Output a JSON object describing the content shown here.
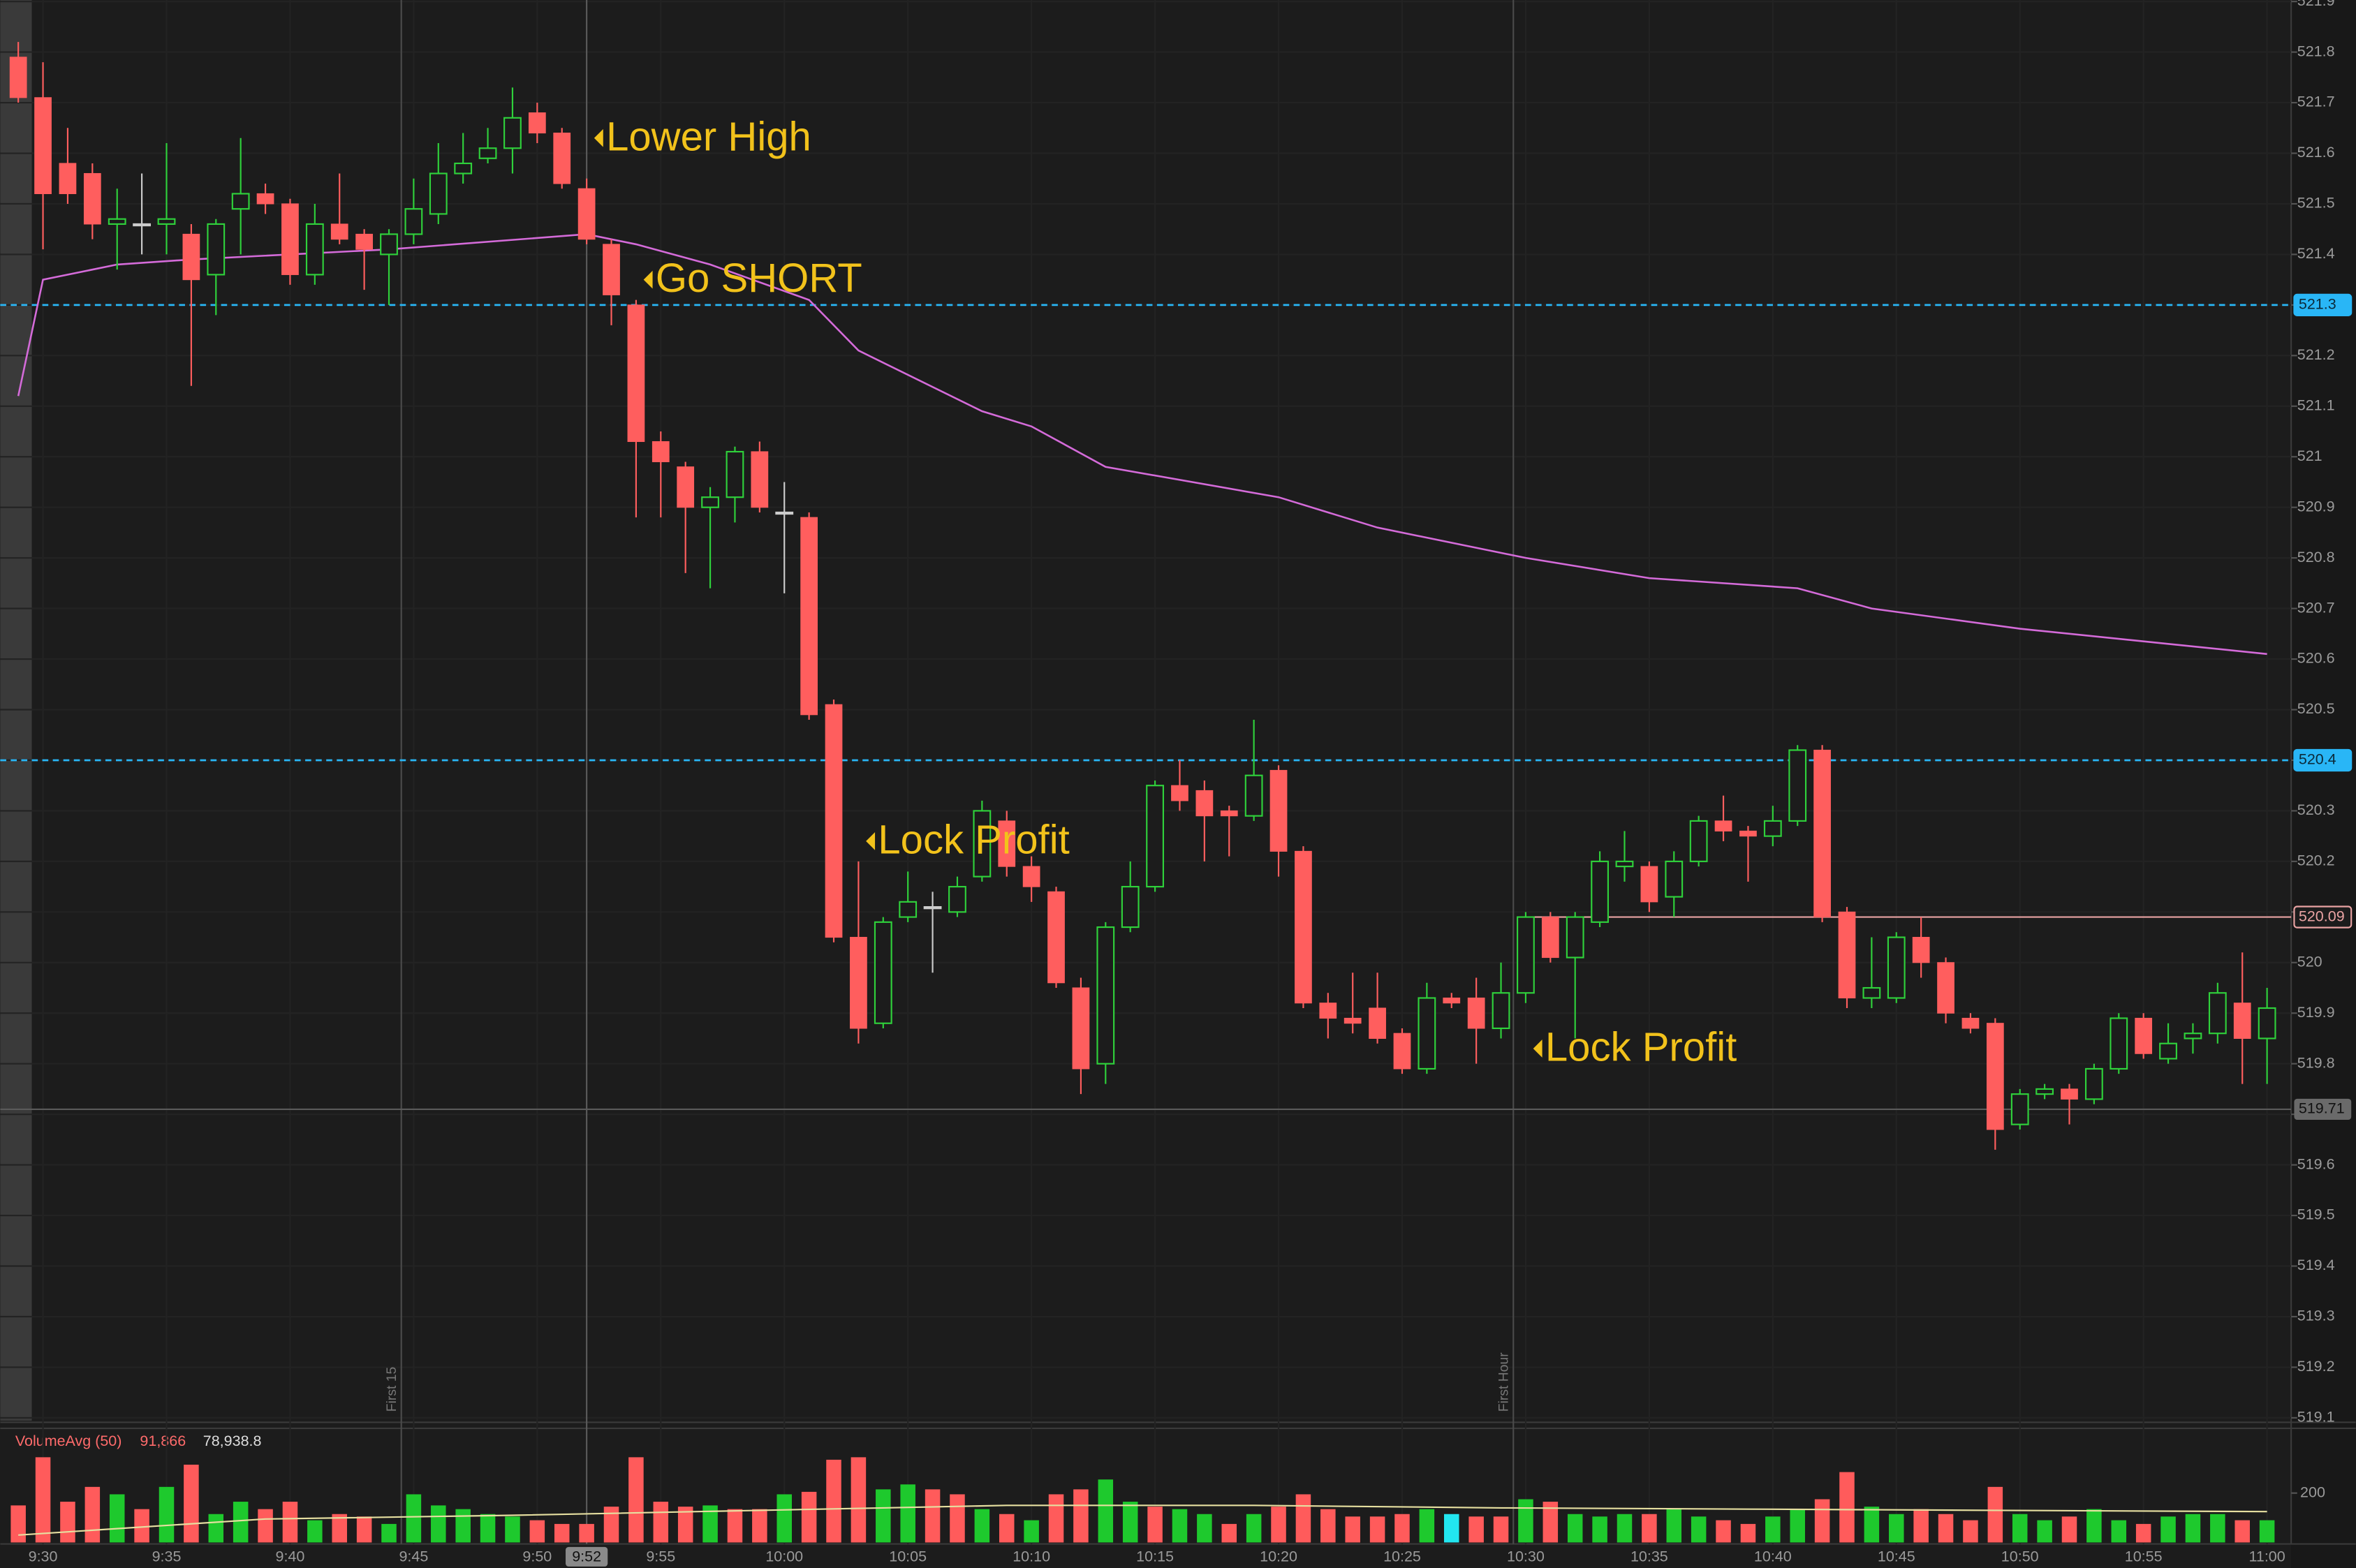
{
  "chart_data": {
    "type": "candlestick",
    "categories": [
      null,
      "9:30",
      null,
      null,
      null,
      null,
      "9:35",
      null,
      null,
      null,
      null,
      "9:40",
      null,
      null,
      null,
      null,
      "9:45",
      null,
      null,
      null,
      null,
      "9:50",
      null,
      null,
      null,
      null,
      "9:55",
      null,
      null,
      null,
      null,
      "10:00",
      null,
      null,
      null,
      null,
      "10:05",
      null,
      null,
      null,
      null,
      "10:10",
      null,
      null,
      null,
      null,
      "10:15",
      null,
      null,
      null,
      null,
      "10:20",
      null,
      null,
      null,
      null,
      "10:25",
      null,
      null,
      null,
      null,
      "10:30",
      null,
      null,
      null,
      null,
      "10:35",
      null,
      null,
      null,
      null,
      "10:40",
      null,
      null,
      null,
      null,
      "10:45",
      null,
      null,
      null,
      null,
      "10:50",
      null,
      null,
      null,
      null,
      "10:55",
      null,
      null,
      null,
      null,
      "11:00"
    ],
    "open": [
      521.79,
      521.71,
      521.58,
      521.56,
      521.46,
      521.46,
      521.46,
      521.44,
      521.36,
      521.49,
      521.52,
      521.5,
      521.36,
      521.46,
      521.44,
      521.4,
      521.44,
      521.48,
      521.56,
      521.59,
      521.61,
      521.68,
      521.64,
      521.53,
      521.42,
      521.3,
      521.03,
      520.98,
      520.9,
      520.92,
      521.01,
      520.89,
      520.88,
      520.51,
      520.05,
      519.88,
      520.09,
      520.11,
      520.1,
      520.17,
      520.28,
      520.19,
      520.14,
      519.95,
      519.8,
      520.07,
      520.15,
      520.35,
      520.34,
      520.3,
      520.29,
      520.38,
      520.22,
      519.92,
      519.89,
      519.91,
      519.86,
      519.79,
      519.93,
      519.93,
      519.87,
      519.94,
      520.09,
      520.01,
      520.08,
      520.19,
      520.19,
      520.13,
      520.2,
      520.28,
      520.26,
      520.25,
      520.28,
      520.42,
      520.1,
      519.93,
      519.93,
      520.05,
      520.0,
      519.89,
      519.88,
      519.68,
      519.74,
      519.75,
      519.73,
      519.79,
      519.89,
      519.81,
      519.85,
      519.86,
      519.92,
      519.85
    ],
    "high": [
      521.82,
      521.78,
      521.65,
      521.58,
      521.53,
      521.56,
      521.62,
      521.46,
      521.47,
      521.63,
      521.54,
      521.51,
      521.5,
      521.56,
      521.45,
      521.45,
      521.55,
      521.62,
      521.64,
      521.65,
      521.73,
      521.7,
      521.65,
      521.55,
      521.43,
      521.31,
      521.05,
      520.99,
      520.94,
      521.02,
      521.03,
      520.95,
      520.89,
      520.52,
      520.2,
      520.09,
      520.18,
      520.14,
      520.17,
      520.32,
      520.3,
      520.21,
      520.15,
      519.97,
      520.08,
      520.2,
      520.36,
      520.4,
      520.36,
      520.31,
      520.48,
      520.39,
      520.23,
      519.94,
      519.98,
      519.98,
      519.87,
      519.96,
      519.94,
      519.97,
      520.0,
      520.1,
      520.1,
      520.1,
      520.22,
      520.26,
      520.2,
      520.22,
      520.29,
      520.33,
      520.27,
      520.31,
      520.43,
      520.43,
      520.11,
      520.05,
      520.06,
      520.09,
      520.01,
      519.9,
      519.89,
      519.75,
      519.76,
      519.76,
      519.8,
      519.9,
      519.9,
      519.88,
      519.88,
      519.96,
      520.02,
      519.95
    ],
    "low": [
      521.7,
      521.41,
      521.5,
      521.43,
      521.37,
      521.4,
      521.4,
      521.14,
      521.28,
      521.4,
      521.48,
      521.34,
      521.34,
      521.42,
      521.33,
      521.3,
      521.42,
      521.46,
      521.54,
      521.58,
      521.56,
      521.62,
      521.53,
      521.42,
      521.26,
      520.88,
      520.88,
      520.77,
      520.74,
      520.87,
      520.89,
      520.73,
      520.48,
      520.04,
      519.84,
      519.87,
      520.08,
      519.98,
      520.09,
      520.16,
      520.17,
      520.12,
      519.95,
      519.74,
      519.76,
      520.06,
      520.14,
      520.3,
      520.2,
      520.21,
      520.28,
      520.17,
      519.91,
      519.85,
      519.86,
      519.84,
      519.78,
      519.78,
      519.91,
      519.8,
      519.85,
      519.92,
      520.0,
      519.85,
      520.07,
      520.16,
      520.1,
      520.09,
      520.19,
      520.24,
      520.16,
      520.23,
      520.27,
      520.08,
      519.91,
      519.91,
      519.92,
      519.97,
      519.88,
      519.86,
      519.63,
      519.67,
      519.73,
      519.68,
      519.72,
      519.78,
      519.81,
      519.8,
      519.82,
      519.84,
      519.76,
      519.76
    ],
    "close": [
      521.71,
      521.52,
      521.52,
      521.46,
      521.47,
      521.46,
      521.47,
      521.35,
      521.46,
      521.52,
      521.5,
      521.36,
      521.46,
      521.43,
      521.41,
      521.44,
      521.49,
      521.56,
      521.58,
      521.61,
      521.67,
      521.64,
      521.54,
      521.43,
      521.32,
      521.03,
      520.99,
      520.9,
      520.92,
      521.01,
      520.9,
      520.89,
      520.49,
      520.05,
      519.87,
      520.08,
      520.12,
      520.11,
      520.15,
      520.3,
      520.19,
      520.15,
      519.96,
      519.79,
      520.07,
      520.15,
      520.35,
      520.32,
      520.29,
      520.29,
      520.37,
      520.22,
      519.92,
      519.89,
      519.88,
      519.85,
      519.79,
      519.93,
      519.92,
      519.87,
      519.94,
      520.09,
      520.01,
      520.09,
      520.2,
      520.2,
      520.12,
      520.2,
      520.28,
      520.26,
      520.25,
      520.28,
      520.42,
      520.09,
      519.93,
      519.95,
      520.05,
      520.0,
      519.9,
      519.87,
      519.67,
      519.74,
      519.75,
      519.73,
      519.79,
      519.89,
      519.82,
      519.84,
      519.86,
      519.94,
      519.85,
      519.91
    ],
    "up_color": "#2fd13b",
    "down_color": "#ff5e5e",
    "ylim": [
      519.1,
      521.9
    ],
    "yticks": [
      519.1,
      519.2,
      519.3,
      519.4,
      519.5,
      519.6,
      519.7,
      519.8,
      519.9,
      520,
      520.1,
      520.2,
      520.3,
      520.4,
      520.5,
      520.6,
      520.7,
      520.8,
      520.9,
      521,
      521.1,
      521.2,
      521.3,
      521.4,
      521.5,
      521.6,
      521.7,
      521.8,
      521.9
    ],
    "grid": true,
    "vwap": {
      "color": "#d46bd9",
      "x": [
        0,
        1,
        4,
        7,
        15,
        23,
        25,
        28,
        32,
        34,
        39,
        41,
        44,
        51,
        55,
        61,
        66,
        72,
        75,
        81,
        87,
        91
      ],
      "values": [
        521.12,
        521.35,
        521.38,
        521.39,
        521.41,
        521.44,
        521.42,
        521.38,
        521.31,
        521.21,
        521.09,
        521.06,
        520.98,
        520.92,
        520.86,
        520.8,
        520.76,
        520.74,
        520.7,
        520.66,
        520.63,
        520.61
      ]
    },
    "levels": [
      {
        "value": 521.3,
        "color": "#29b6f6",
        "style": "dashed"
      },
      {
        "value": 520.4,
        "color": "#29b6f6",
        "style": "dashed"
      },
      {
        "value": 520.09,
        "color": "#e9a3a3",
        "style": "solid",
        "start": 61
      }
    ],
    "crosshair": {
      "time": "9:52",
      "index": 23,
      "price": 519.71,
      "color": "#5a5a5a"
    },
    "sessions": [
      {
        "label": "First 15",
        "index": 16
      },
      {
        "label": "First Hour",
        "index": 61
      }
    ],
    "annotations": [
      {
        "text": "Lower High",
        "x": 23,
        "y": 521.63
      },
      {
        "text": "Go SHORT",
        "x": 25,
        "y": 521.35
      },
      {
        "text": "Lock Profit",
        "x": 34,
        "y": 520.24
      },
      {
        "text": "Lock Profit",
        "x": 61,
        "y": 519.83
      }
    ],
    "annotation_color": "#f2c21b",
    "volume": {
      "title": "VolumeAvg (50)",
      "last": "91,866",
      "average": "78,938.8",
      "values": [
        150,
        345,
        165,
        225,
        195,
        135,
        225,
        315,
        115,
        165,
        135,
        165,
        90,
        115,
        105,
        75,
        195,
        150,
        135,
        115,
        105,
        90,
        75,
        75,
        145,
        345,
        165,
        145,
        150,
        135,
        135,
        195,
        205,
        335,
        345,
        215,
        235,
        215,
        195,
        135,
        115,
        90,
        195,
        215,
        255,
        165,
        145,
        135,
        115,
        75,
        115,
        145,
        195,
        135,
        105,
        105,
        115,
        135,
        115,
        105,
        105,
        175,
        165,
        115,
        105,
        115,
        115,
        135,
        105,
        90,
        75,
        105,
        135,
        175,
        285,
        145,
        115,
        135,
        115,
        90,
        225,
        115,
        90,
        105,
        135,
        90,
        75,
        105,
        115,
        115,
        90,
        90
      ],
      "colors": [
        "#ff5b5b",
        "#ff5b5b",
        "#ff5b5b",
        "#ff5b5b",
        "#1ec92d",
        "#ff5b5b",
        "#1ec92d",
        "#ff5b5b",
        "#1ec92d",
        "#1ec92d",
        "#ff5b5b",
        "#ff5b5b",
        "#1ec92d",
        "#ff5b5b",
        "#ff5b5b",
        "#1ec92d",
        "#1ec92d",
        "#1ec92d",
        "#1ec92d",
        "#1ec92d",
        "#1ec92d",
        "#ff5b5b",
        "#ff5b5b",
        "#ff5b5b",
        "#ff5b5b",
        "#ff5b5b",
        "#ff5b5b",
        "#ff5b5b",
        "#1ec92d",
        "#ff5b5b",
        "#ff5b5b",
        "#1ec92d",
        "#ff5b5b",
        "#ff5b5b",
        "#ff5b5b",
        "#1ec92d",
        "#1ec92d",
        "#ff5b5b",
        "#ff5b5b",
        "#1ec92d",
        "#ff5b5b",
        "#1ec92d",
        "#ff5b5b",
        "#ff5b5b",
        "#1ec92d",
        "#1ec92d",
        "#ff5b5b",
        "#1ec92d",
        "#1ec92d",
        "#ff5b5b",
        "#1ec92d",
        "#ff5b5b",
        "#ff5b5b",
        "#ff5b5b",
        "#ff5b5b",
        "#ff5b5b",
        "#ff5b5b",
        "#1ec92d",
        "#22e6f0",
        "#ff5b5b",
        "#ff5b5b",
        "#1ec92d",
        "#ff5b5b",
        "#1ec92d",
        "#1ec92d",
        "#1ec92d",
        "#ff5b5b",
        "#1ec92d",
        "#1ec92d",
        "#ff5b5b",
        "#ff5b5b",
        "#1ec92d",
        "#1ec92d",
        "#ff5b5b",
        "#ff5b5b",
        "#1ec92d",
        "#1ec92d",
        "#ff5b5b",
        "#ff5b5b",
        "#ff5b5b",
        "#ff5b5b",
        "#1ec92d",
        "#1ec92d",
        "#ff5b5b",
        "#1ec92d",
        "#1ec92d",
        "#ff5b5b",
        "#1ec92d",
        "#1ec92d",
        "#1ec92d",
        "#ff5b5b",
        "#1ec92d"
      ],
      "ylim": [
        0,
        450
      ],
      "yticks": [
        200
      ],
      "avg_color": "#e6dfa0",
      "avg_x": [
        0,
        10,
        20,
        30,
        40,
        50,
        60,
        70,
        80,
        91
      ],
      "avg_values": [
        30,
        95,
        110,
        130,
        150,
        150,
        140,
        135,
        130,
        125
      ]
    }
  }
}
